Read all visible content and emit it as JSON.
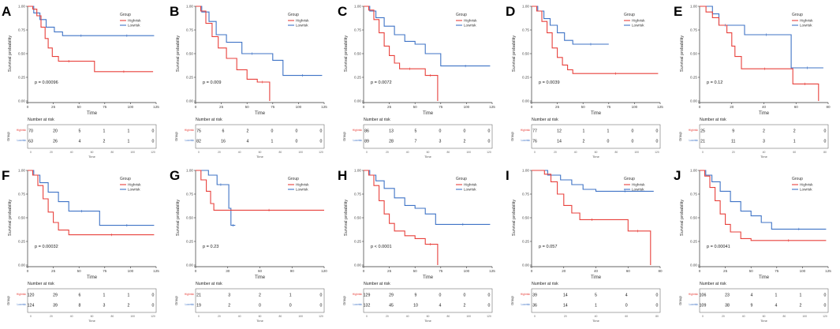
{
  "chart_data": {
    "type": "line",
    "description_labels": {
      "y_label": "Survival probability",
      "x_label": "Time",
      "legend_title": "Group",
      "high_label": "Highrisk",
      "low_label": "Lowrisk",
      "risk_title": "Number at risk",
      "risk_axis_label": "Group"
    },
    "colors": {
      "high": "#e8413c",
      "low": "#3f73c6"
    },
    "panels": [
      {
        "letter": "A",
        "pvalue": "p = 0.00096",
        "xmax": 125,
        "xticks": [
          0,
          25,
          50,
          75,
          100,
          125
        ],
        "risk_ticks": [
          0,
          20,
          40,
          60,
          80,
          100,
          120
        ],
        "high": [
          [
            0,
            1
          ],
          [
            5,
            0.97
          ],
          [
            9,
            0.9
          ],
          [
            13,
            0.78
          ],
          [
            17,
            0.66
          ],
          [
            20,
            0.56
          ],
          [
            24,
            0.47
          ],
          [
            30,
            0.42
          ],
          [
            50,
            0.42
          ],
          [
            65,
            0.31
          ],
          [
            122,
            0.31
          ]
        ],
        "low": [
          [
            0,
            1
          ],
          [
            6,
            0.93
          ],
          [
            12,
            0.86
          ],
          [
            18,
            0.78
          ],
          [
            26,
            0.73
          ],
          [
            34,
            0.69
          ],
          [
            70,
            0.69
          ],
          [
            123,
            0.69
          ]
        ],
        "risk_high": [
          "70",
          "20",
          "5",
          "1",
          "1",
          "0"
        ],
        "risk_low": [
          "63",
          "26",
          "4",
          "2",
          "1",
          "0"
        ]
      },
      {
        "letter": "B",
        "pvalue": "p = 0.009",
        "xmax": 125,
        "xticks": [
          0,
          25,
          50,
          75,
          100,
          125
        ],
        "risk_ticks": [
          0,
          20,
          40,
          60,
          80,
          100,
          120
        ],
        "high": [
          [
            0,
            1
          ],
          [
            5,
            0.95
          ],
          [
            10,
            0.82
          ],
          [
            16,
            0.68
          ],
          [
            22,
            0.56
          ],
          [
            30,
            0.45
          ],
          [
            40,
            0.33
          ],
          [
            50,
            0.23
          ],
          [
            60,
            0.2
          ],
          [
            70,
            0.2
          ],
          [
            72,
            0
          ]
        ],
        "low": [
          [
            0,
            1
          ],
          [
            6,
            0.94
          ],
          [
            13,
            0.84
          ],
          [
            20,
            0.7
          ],
          [
            30,
            0.62
          ],
          [
            45,
            0.5
          ],
          [
            65,
            0.5
          ],
          [
            75,
            0.43
          ],
          [
            85,
            0.27
          ],
          [
            123,
            0.27
          ]
        ],
        "risk_high": [
          "75",
          "6",
          "2",
          "0",
          "0",
          "0"
        ],
        "risk_low": [
          "82",
          "16",
          "4",
          "1",
          "0",
          "0"
        ]
      },
      {
        "letter": "C",
        "pvalue": "p = 0.0072",
        "xmax": 125,
        "xticks": [
          0,
          25,
          50,
          75,
          100,
          125
        ],
        "risk_ticks": [
          0,
          20,
          40,
          60,
          80,
          100,
          120
        ],
        "high": [
          [
            0,
            1
          ],
          [
            5,
            0.96
          ],
          [
            10,
            0.86
          ],
          [
            15,
            0.72
          ],
          [
            20,
            0.58
          ],
          [
            25,
            0.48
          ],
          [
            30,
            0.4
          ],
          [
            35,
            0.34
          ],
          [
            55,
            0.34
          ],
          [
            60,
            0.27
          ],
          [
            70,
            0.27
          ],
          [
            72,
            0
          ]
        ],
        "low": [
          [
            0,
            1
          ],
          [
            6,
            0.95
          ],
          [
            12,
            0.88
          ],
          [
            20,
            0.79
          ],
          [
            30,
            0.7
          ],
          [
            40,
            0.63
          ],
          [
            50,
            0.6
          ],
          [
            60,
            0.5
          ],
          [
            75,
            0.37
          ],
          [
            123,
            0.37
          ]
        ],
        "risk_high": [
          "86",
          "13",
          "5",
          "0",
          "0",
          "0"
        ],
        "risk_low": [
          "89",
          "28",
          "7",
          "3",
          "2",
          "0"
        ]
      },
      {
        "letter": "D",
        "pvalue": "p = 0.0039",
        "xmax": 125,
        "xticks": [
          0,
          25,
          50,
          75,
          100,
          125
        ],
        "risk_ticks": [
          0,
          20,
          40,
          60,
          80,
          100,
          120
        ],
        "high": [
          [
            0,
            1
          ],
          [
            5,
            0.95
          ],
          [
            10,
            0.84
          ],
          [
            15,
            0.72
          ],
          [
            20,
            0.56
          ],
          [
            25,
            0.46
          ],
          [
            30,
            0.38
          ],
          [
            35,
            0.33
          ],
          [
            40,
            0.29
          ],
          [
            123,
            0.29
          ]
        ],
        "low": [
          [
            0,
            1
          ],
          [
            6,
            0.95
          ],
          [
            12,
            0.87
          ],
          [
            18,
            0.8
          ],
          [
            25,
            0.72
          ],
          [
            32,
            0.64
          ],
          [
            40,
            0.6
          ],
          [
            75,
            0.6
          ]
        ],
        "risk_high": [
          "77",
          "12",
          "1",
          "1",
          "0",
          "0"
        ],
        "risk_low": [
          "76",
          "14",
          "2",
          "0",
          "0",
          "0"
        ]
      },
      {
        "letter": "E",
        "pvalue": "p = 0.12",
        "xmax": 80,
        "xticks": [
          0,
          20,
          40,
          60,
          80
        ],
        "risk_ticks": [
          0,
          20,
          40,
          60,
          80
        ],
        "high": [
          [
            0,
            1
          ],
          [
            4,
            0.94
          ],
          [
            8,
            0.88
          ],
          [
            12,
            0.8
          ],
          [
            17,
            0.72
          ],
          [
            20,
            0.58
          ],
          [
            22,
            0.47
          ],
          [
            26,
            0.34
          ],
          [
            55,
            0.34
          ],
          [
            58,
            0.18
          ],
          [
            73,
            0.18
          ],
          [
            74,
            0
          ]
        ],
        "low": [
          [
            0,
            1
          ],
          [
            8,
            0.92
          ],
          [
            12,
            0.8
          ],
          [
            20,
            0.8
          ],
          [
            28,
            0.7
          ],
          [
            55,
            0.7
          ],
          [
            57,
            0.35
          ],
          [
            77,
            0.35
          ]
        ],
        "risk_high": [
          "25",
          "9",
          "2",
          "2",
          "0"
        ],
        "risk_low": [
          "21",
          "11",
          "3",
          "1",
          "0"
        ]
      },
      {
        "letter": "F",
        "pvalue": "p = 0.00032",
        "xmax": 125,
        "xticks": [
          0,
          25,
          50,
          75,
          100,
          125
        ],
        "risk_ticks": [
          0,
          20,
          40,
          60,
          80,
          100,
          120
        ],
        "high": [
          [
            0,
            1
          ],
          [
            5,
            0.95
          ],
          [
            10,
            0.84
          ],
          [
            15,
            0.7
          ],
          [
            20,
            0.56
          ],
          [
            25,
            0.45
          ],
          [
            30,
            0.37
          ],
          [
            40,
            0.32
          ],
          [
            123,
            0.32
          ]
        ],
        "low": [
          [
            0,
            1
          ],
          [
            6,
            0.95
          ],
          [
            12,
            0.87
          ],
          [
            20,
            0.77
          ],
          [
            30,
            0.67
          ],
          [
            40,
            0.57
          ],
          [
            65,
            0.57
          ],
          [
            70,
            0.42
          ],
          [
            123,
            0.42
          ]
        ],
        "risk_high": [
          "120",
          "29",
          "6",
          "1",
          "1",
          "0"
        ],
        "risk_low": [
          "124",
          "39",
          "8",
          "3",
          "2",
          "0"
        ]
      },
      {
        "letter": "G",
        "pvalue": "p = 0.23",
        "xmax": 120,
        "xticks": [
          0,
          30,
          60,
          90,
          120
        ],
        "risk_ticks": [
          0,
          20,
          40,
          60,
          80,
          100,
          120
        ],
        "high": [
          [
            0,
            1
          ],
          [
            5,
            0.9
          ],
          [
            10,
            0.78
          ],
          [
            14,
            0.65
          ],
          [
            17,
            0.58
          ],
          [
            120,
            0.58
          ]
        ],
        "low": [
          [
            0,
            1
          ],
          [
            12,
            0.95
          ],
          [
            20,
            0.85
          ],
          [
            27,
            0.85
          ],
          [
            31,
            0.6
          ],
          [
            33,
            0.42
          ],
          [
            37,
            0.42
          ]
        ],
        "risk_high": [
          "21",
          "3",
          "2",
          "1",
          "0"
        ],
        "risk_low": [
          "19",
          "2",
          "0",
          "0",
          "0"
        ]
      },
      {
        "letter": "H",
        "pvalue": "p < 0.0001",
        "xmax": 125,
        "xticks": [
          0,
          25,
          50,
          75,
          100,
          125
        ],
        "risk_ticks": [
          0,
          20,
          40,
          60,
          80,
          100,
          120
        ],
        "high": [
          [
            0,
            1
          ],
          [
            5,
            0.95
          ],
          [
            10,
            0.84
          ],
          [
            15,
            0.68
          ],
          [
            20,
            0.54
          ],
          [
            25,
            0.44
          ],
          [
            30,
            0.36
          ],
          [
            40,
            0.31
          ],
          [
            50,
            0.28
          ],
          [
            60,
            0.22
          ],
          [
            70,
            0.22
          ],
          [
            72,
            0
          ]
        ],
        "low": [
          [
            0,
            1
          ],
          [
            6,
            0.95
          ],
          [
            12,
            0.89
          ],
          [
            20,
            0.81
          ],
          [
            30,
            0.71
          ],
          [
            40,
            0.63
          ],
          [
            50,
            0.6
          ],
          [
            60,
            0.54
          ],
          [
            70,
            0.43
          ],
          [
            123,
            0.43
          ]
        ],
        "risk_high": [
          "129",
          "29",
          "9",
          "0",
          "0",
          "0"
        ],
        "risk_low": [
          "132",
          "45",
          "10",
          "4",
          "2",
          "0"
        ]
      },
      {
        "letter": "I",
        "pvalue": "p = 0.057",
        "xmax": 80,
        "xticks": [
          0,
          20,
          40,
          60,
          80
        ],
        "risk_ticks": [
          0,
          20,
          40,
          60,
          80
        ],
        "high": [
          [
            0,
            1
          ],
          [
            8,
            0.96
          ],
          [
            12,
            0.88
          ],
          [
            16,
            0.75
          ],
          [
            20,
            0.63
          ],
          [
            25,
            0.55
          ],
          [
            30,
            0.48
          ],
          [
            45,
            0.48
          ],
          [
            60,
            0.36
          ],
          [
            72,
            0.36
          ],
          [
            74,
            0
          ]
        ],
        "low": [
          [
            0,
            1
          ],
          [
            10,
            0.95
          ],
          [
            18,
            0.9
          ],
          [
            25,
            0.85
          ],
          [
            32,
            0.8
          ],
          [
            40,
            0.78
          ],
          [
            76,
            0.78
          ]
        ],
        "risk_high": [
          "39",
          "14",
          "5",
          "4",
          "0"
        ],
        "risk_low": [
          "36",
          "14",
          "1",
          "0",
          "0"
        ]
      },
      {
        "letter": "J",
        "pvalue": "p = 0.00041",
        "xmax": 125,
        "xticks": [
          0,
          25,
          50,
          75,
          100,
          125
        ],
        "risk_ticks": [
          0,
          20,
          40,
          60,
          80,
          100,
          120
        ],
        "high": [
          [
            0,
            1
          ],
          [
            5,
            0.94
          ],
          [
            10,
            0.82
          ],
          [
            15,
            0.68
          ],
          [
            20,
            0.54
          ],
          [
            25,
            0.43
          ],
          [
            30,
            0.35
          ],
          [
            40,
            0.28
          ],
          [
            50,
            0.26
          ],
          [
            123,
            0.26
          ]
        ],
        "low": [
          [
            0,
            1
          ],
          [
            6,
            0.95
          ],
          [
            12,
            0.88
          ],
          [
            20,
            0.78
          ],
          [
            30,
            0.67
          ],
          [
            40,
            0.57
          ],
          [
            50,
            0.52
          ],
          [
            60,
            0.45
          ],
          [
            70,
            0.38
          ],
          [
            123,
            0.38
          ]
        ],
        "risk_high": [
          "106",
          "23",
          "4",
          "1",
          "1",
          "0"
        ],
        "risk_low": [
          "109",
          "38",
          "9",
          "4",
          "2",
          "0"
        ]
      }
    ],
    "yticks": [
      "0.00",
      "0.25",
      "0.50",
      "0.75",
      "1.00"
    ],
    "ylim": [
      0,
      1
    ]
  }
}
